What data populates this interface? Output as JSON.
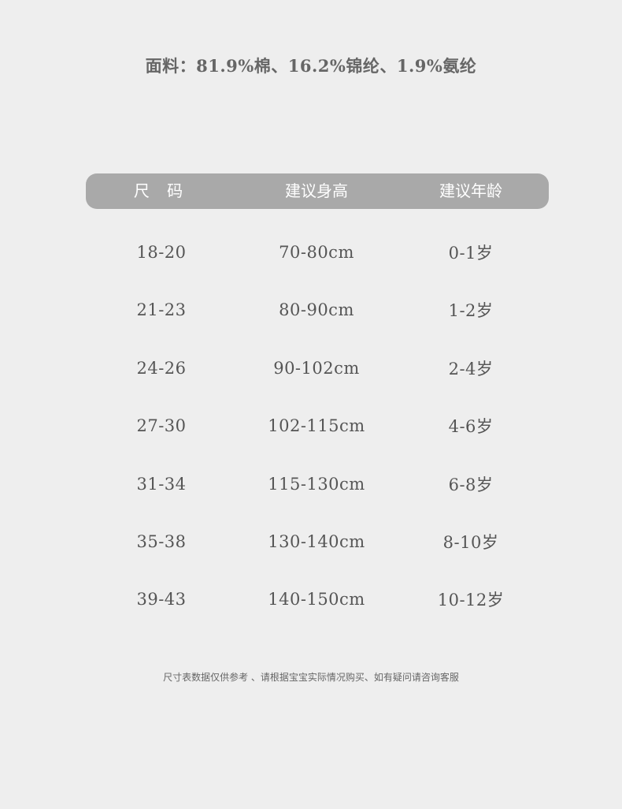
{
  "fabric": "面料：81.9%棉、16.2%锦纶、1.9%氨纶",
  "table": {
    "headers": [
      "尺 码",
      "建议身高",
      "建议年龄"
    ],
    "rows": [
      [
        "18-20",
        "70-80cm",
        "0-1岁"
      ],
      [
        "21-23",
        "80-90cm",
        "1-2岁"
      ],
      [
        "24-26",
        "90-102cm",
        "2-4岁"
      ],
      [
        "27-30",
        "102-115cm",
        "4-6岁"
      ],
      [
        "31-34",
        "115-130cm",
        "6-8岁"
      ],
      [
        "35-38",
        "130-140cm",
        "8-10岁"
      ],
      [
        "39-43",
        "140-150cm",
        "10-12岁"
      ]
    ]
  },
  "note": "尺寸表数据仅供参考 、请根据宝宝实际情况购买、如有疑问请咨询客服",
  "colors": {
    "background": "#eeeeee",
    "header": "#a9a9a9",
    "text": "#555555"
  }
}
